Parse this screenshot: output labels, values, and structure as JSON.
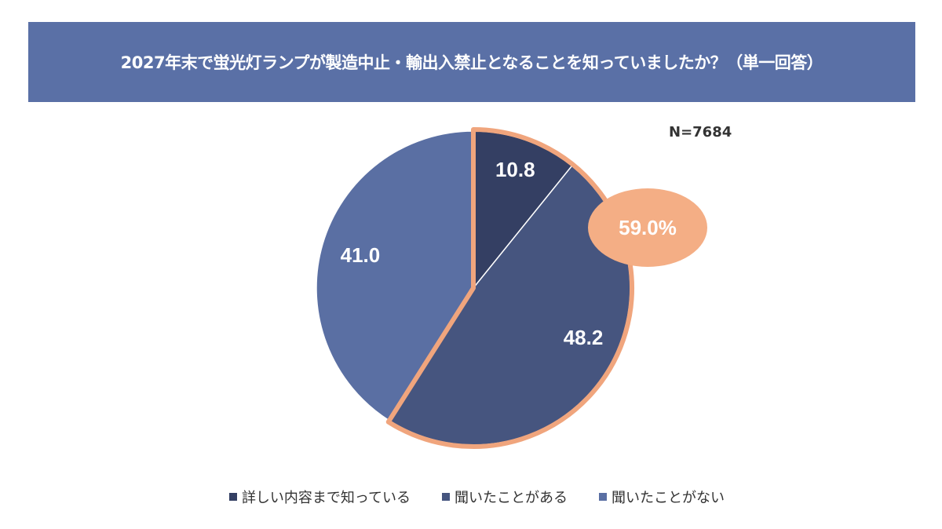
{
  "chart_data": {
    "type": "pie",
    "title": "2027年末で蛍光灯ランプが製造中止・輸出入禁止となることを知っていましたか？（単一回答）",
    "annotation_n": "N=7684",
    "categories": [
      "詳しい内容まで知っている",
      "聞いたことがある",
      "聞いたことがない"
    ],
    "values": [
      10.8,
      48.2,
      41.0
    ],
    "value_labels": [
      "10.8",
      "48.2",
      "41.0"
    ],
    "colors": [
      "#343f63",
      "#46557f",
      "#5a6fa3"
    ],
    "highlight": {
      "label": "59.0%",
      "slices": [
        0,
        1
      ],
      "color": "#f0a57d"
    },
    "legend_position": "bottom",
    "start": "top, clockwise"
  }
}
